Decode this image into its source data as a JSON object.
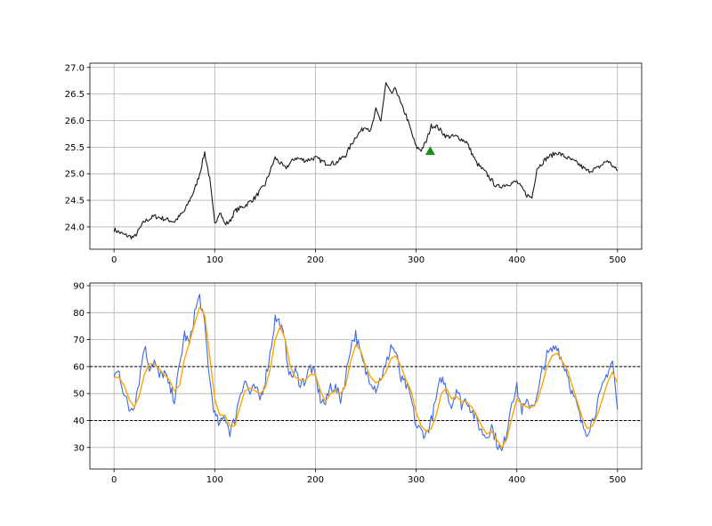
{
  "chart_data": [
    {
      "type": "line",
      "title": "",
      "xlabel": "",
      "ylabel": "",
      "xlim": [
        -24,
        524
      ],
      "ylim": [
        23.58,
        27.08
      ],
      "xticks": [
        0,
        100,
        200,
        300,
        400,
        500
      ],
      "yticks": [
        24.0,
        24.5,
        25.0,
        25.5,
        26.0,
        26.5,
        27.0
      ],
      "xtick_labels": [
        "0",
        "100",
        "200",
        "300",
        "400",
        "500"
      ],
      "ytick_labels": [
        "24.0",
        "24.5",
        "25.0",
        "25.5",
        "26.0",
        "26.5",
        "27.0"
      ],
      "grid": true,
      "legend": "none",
      "colors": {
        "price": "#1a1a1a",
        "signal": "#1e8c1e"
      },
      "series": [
        {
          "style": "line",
          "x": [
            0,
            10,
            20,
            30,
            40,
            50,
            60,
            70,
            80,
            85,
            90,
            95,
            100,
            105,
            110,
            115,
            120,
            130,
            140,
            150,
            160,
            165,
            170,
            180,
            190,
            200,
            210,
            220,
            230,
            240,
            250,
            255,
            260,
            265,
            270,
            275,
            280,
            285,
            290,
            300,
            305,
            310,
            315,
            320,
            330,
            340,
            350,
            360,
            370,
            380,
            390,
            400,
            410,
            415,
            420,
            430,
            440,
            450,
            460,
            470,
            480,
            490,
            500
          ],
          "y": [
            23.95,
            23.85,
            23.8,
            24.1,
            24.2,
            24.15,
            24.1,
            24.3,
            24.7,
            25.0,
            25.4,
            24.9,
            24.05,
            24.3,
            24.05,
            24.1,
            24.3,
            24.4,
            24.55,
            24.8,
            25.3,
            25.2,
            25.1,
            25.3,
            25.25,
            25.3,
            25.2,
            25.2,
            25.35,
            25.7,
            25.9,
            25.8,
            26.2,
            26.0,
            26.7,
            26.5,
            26.6,
            26.3,
            26.1,
            25.5,
            25.45,
            25.6,
            25.9,
            25.9,
            25.7,
            25.7,
            25.6,
            25.2,
            25.0,
            24.75,
            24.8,
            24.85,
            24.6,
            24.55,
            25.1,
            25.3,
            25.4,
            25.3,
            25.2,
            25.05,
            25.1,
            25.25,
            25.05
          ]
        },
        {
          "style": "marker",
          "marker": "triangle-up",
          "x": [
            314
          ],
          "y": [
            25.42
          ]
        }
      ]
    },
    {
      "type": "line",
      "title": "",
      "xlabel": "",
      "ylabel": "",
      "xlim": [
        -24,
        524
      ],
      "ylim": [
        22,
        91
      ],
      "xticks": [
        0,
        100,
        200,
        300,
        400,
        500
      ],
      "yticks": [
        30,
        40,
        50,
        60,
        70,
        80,
        90
      ],
      "xtick_labels": [
        "0",
        "100",
        "200",
        "300",
        "400",
        "500"
      ],
      "ytick_labels": [
        "30",
        "40",
        "50",
        "60",
        "70",
        "80",
        "90"
      ],
      "grid": true,
      "legend": "none",
      "hlines": [
        60,
        40
      ],
      "colors": {
        "oscillator": "#4169e1",
        "smoothed": "#ffa500",
        "level": "#000000"
      },
      "series": [
        {
          "style": "line",
          "x": [
            0,
            5,
            10,
            15,
            20,
            25,
            30,
            35,
            40,
            45,
            50,
            55,
            60,
            65,
            70,
            75,
            80,
            85,
            90,
            95,
            100,
            105,
            110,
            115,
            120,
            125,
            130,
            135,
            140,
            145,
            150,
            155,
            160,
            165,
            170,
            175,
            180,
            185,
            190,
            195,
            200,
            205,
            210,
            215,
            220,
            225,
            230,
            235,
            240,
            245,
            250,
            255,
            260,
            265,
            270,
            275,
            280,
            285,
            290,
            295,
            300,
            305,
            310,
            315,
            320,
            325,
            330,
            335,
            340,
            345,
            350,
            355,
            360,
            365,
            370,
            375,
            380,
            385,
            390,
            395,
            400,
            405,
            410,
            415,
            420,
            425,
            430,
            435,
            440,
            445,
            450,
            455,
            460,
            465,
            470,
            475,
            480,
            485,
            490,
            495,
            500
          ],
          "y": [
            57,
            58,
            50,
            44,
            46,
            55,
            68,
            60,
            62,
            56,
            58,
            52,
            48,
            60,
            72,
            68,
            80,
            86,
            75,
            55,
            42,
            38,
            42,
            36,
            40,
            50,
            55,
            50,
            52,
            48,
            55,
            65,
            78,
            76,
            68,
            56,
            58,
            54,
            55,
            60,
            56,
            48,
            46,
            53,
            52,
            48,
            56,
            68,
            72,
            64,
            58,
            55,
            52,
            56,
            60,
            68,
            65,
            55,
            53,
            48,
            38,
            36,
            35,
            40,
            48,
            56,
            52,
            45,
            52,
            46,
            48,
            44,
            40,
            36,
            34,
            38,
            32,
            28,
            36,
            48,
            52,
            44,
            46,
            46,
            48,
            58,
            64,
            66,
            68,
            62,
            58,
            50,
            45,
            38,
            36,
            40,
            46,
            52,
            58,
            62,
            44
          ]
        },
        {
          "style": "line",
          "x": [
            0,
            5,
            10,
            15,
            20,
            25,
            30,
            35,
            40,
            45,
            50,
            55,
            60,
            65,
            70,
            75,
            80,
            85,
            90,
            95,
            100,
            105,
            110,
            115,
            120,
            125,
            130,
            135,
            140,
            145,
            150,
            155,
            160,
            165,
            170,
            175,
            180,
            185,
            190,
            195,
            200,
            205,
            210,
            215,
            220,
            225,
            230,
            235,
            240,
            245,
            250,
            255,
            260,
            265,
            270,
            275,
            280,
            285,
            290,
            295,
            300,
            305,
            310,
            315,
            320,
            325,
            330,
            335,
            340,
            345,
            350,
            355,
            360,
            365,
            370,
            375,
            380,
            385,
            390,
            395,
            400,
            405,
            410,
            415,
            420,
            425,
            430,
            435,
            440,
            445,
            450,
            455,
            460,
            465,
            470,
            475,
            480,
            485,
            490,
            495,
            500
          ],
          "y": [
            56,
            56,
            53,
            48,
            45,
            49,
            57,
            61,
            61,
            59,
            57,
            55,
            51,
            53,
            63,
            69,
            76,
            82,
            79,
            64,
            48,
            42,
            42,
            38,
            38,
            45,
            51,
            52,
            51,
            50,
            52,
            59,
            70,
            75,
            70,
            60,
            56,
            55,
            55,
            57,
            57,
            51,
            47,
            50,
            51,
            50,
            53,
            62,
            68,
            66,
            60,
            56,
            54,
            55,
            58,
            63,
            64,
            60,
            55,
            51,
            43,
            38,
            36,
            37,
            42,
            50,
            52,
            48,
            49,
            47,
            47,
            45,
            42,
            38,
            35,
            36,
            33,
            30,
            33,
            41,
            48,
            46,
            45,
            45,
            47,
            53,
            60,
            64,
            65,
            62,
            59,
            53,
            47,
            41,
            37,
            38,
            42,
            48,
            54,
            58,
            54
          ]
        }
      ]
    }
  ]
}
